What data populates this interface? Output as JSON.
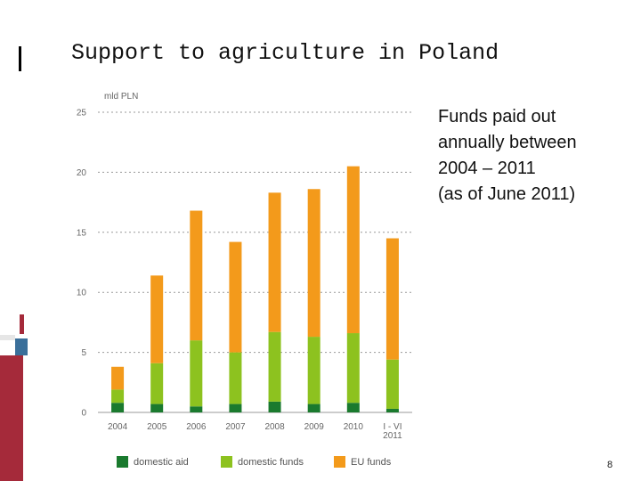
{
  "slide": {
    "title": "Support to agriculture in Poland",
    "description_lines": [
      "Funds paid out",
      "annually between",
      "2004 – 2011",
      "(as of June 2011)"
    ],
    "page_number": "8"
  },
  "chart_data": {
    "type": "bar",
    "stacked": true,
    "ylabel": "mld PLN",
    "ylim": [
      0,
      25
    ],
    "yticks": [
      0,
      5,
      10,
      15,
      20,
      25
    ],
    "grid": true,
    "legend_position": "bottom",
    "categories": [
      {
        "lines": [
          "2004"
        ]
      },
      {
        "lines": [
          "2005"
        ]
      },
      {
        "lines": [
          "2006"
        ]
      },
      {
        "lines": [
          "2007"
        ]
      },
      {
        "lines": [
          "2008"
        ]
      },
      {
        "lines": [
          "2009"
        ]
      },
      {
        "lines": [
          "2010"
        ]
      },
      {
        "lines": [
          "I - VI",
          "2011"
        ]
      }
    ],
    "series": [
      {
        "name": "domestic aid",
        "color": "#1a7a2e",
        "values": [
          0.8,
          0.7,
          0.5,
          0.7,
          0.9,
          0.7,
          0.8,
          0.3
        ]
      },
      {
        "name": "domestic funds",
        "color": "#8dc21f",
        "values": [
          1.1,
          3.4,
          5.5,
          4.3,
          5.8,
          5.6,
          5.8,
          4.1
        ]
      },
      {
        "name": "EU funds",
        "color": "#f39a1b",
        "values": [
          1.9,
          7.3,
          10.8,
          9.2,
          11.6,
          12.3,
          13.9,
          10.1
        ]
      }
    ]
  }
}
